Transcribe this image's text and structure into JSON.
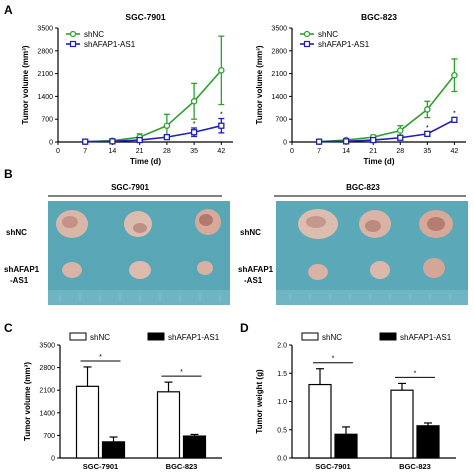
{
  "panels": {
    "a": "A",
    "b": "B",
    "c": "C",
    "d": "D"
  },
  "colors": {
    "shNC": "#2ca02c",
    "shAFAP1": "#1f1fb4",
    "photo_bg": "#5aa8b8"
  },
  "chart_data": [
    {
      "id": "line-sgc",
      "type": "line",
      "title": "SGC-7901",
      "xlabel": "Time (d)",
      "ylabel": "Tumor volume (mm³)",
      "x": [
        0,
        7,
        14,
        21,
        28,
        35,
        42
      ],
      "xticks": [
        "0",
        "7",
        "14",
        "21",
        "28",
        "35",
        "42"
      ],
      "xlim": [
        0,
        45
      ],
      "ylim": [
        0,
        3500
      ],
      "yticks": [
        "0",
        "700",
        "1400",
        "2100",
        "2800",
        "3500"
      ],
      "legend_position": "top-left",
      "series": [
        {
          "name": "shNC",
          "x": [
            7,
            14,
            21,
            28,
            35,
            42
          ],
          "values": [
            10,
            40,
            150,
            500,
            1250,
            2200
          ],
          "errors": [
            5,
            15,
            100,
            350,
            550,
            1050
          ]
        },
        {
          "name": "shAFAP1-AS1",
          "x": [
            7,
            14,
            21,
            28,
            35,
            42
          ],
          "values": [
            10,
            20,
            60,
            150,
            300,
            500
          ],
          "errors": [
            5,
            10,
            30,
            60,
            130,
            220
          ]
        }
      ],
      "annotations": [
        {
          "x": 35,
          "text": "*"
        },
        {
          "x": 42,
          "text": "*"
        }
      ]
    },
    {
      "id": "line-bgc",
      "type": "line",
      "title": "BGC-823",
      "xlabel": "Time (d)",
      "ylabel": "Tumor volume (mm³)",
      "x": [
        0,
        7,
        14,
        21,
        28,
        35,
        42
      ],
      "xticks": [
        "0",
        "7",
        "14",
        "21",
        "28",
        "35",
        "42"
      ],
      "xlim": [
        0,
        45
      ],
      "ylim": [
        0,
        3500
      ],
      "yticks": [
        "0",
        "700",
        "1400",
        "2100",
        "2800",
        "3500"
      ],
      "legend_position": "top-left",
      "series": [
        {
          "name": "shNC",
          "x": [
            7,
            14,
            21,
            28,
            35,
            42
          ],
          "values": [
            10,
            60,
            150,
            350,
            1000,
            2050
          ],
          "errors": [
            5,
            20,
            60,
            150,
            250,
            500
          ]
        },
        {
          "name": "shAFAP1-AS1",
          "x": [
            7,
            14,
            21,
            28,
            35,
            42
          ],
          "values": [
            10,
            20,
            60,
            130,
            250,
            680
          ],
          "errors": [
            5,
            10,
            25,
            40,
            60,
            70
          ]
        }
      ],
      "annotations": [
        {
          "x": 35,
          "text": "*"
        },
        {
          "x": 42,
          "text": "*"
        }
      ]
    },
    {
      "id": "bar-volume",
      "type": "bar",
      "title": "",
      "ylabel": "Tumor volume (mm³)",
      "categories": [
        "SGC-7901",
        "BGC-823"
      ],
      "ylim": [
        0,
        3500
      ],
      "yticks": [
        "0",
        "700",
        "1400",
        "2100",
        "2800",
        "3500"
      ],
      "legend_position": "top",
      "series": [
        {
          "name": "shNC",
          "values": [
            2220,
            2050
          ],
          "errors": [
            600,
            300
          ]
        },
        {
          "name": "shAFAP1-AS1",
          "values": [
            500,
            680
          ],
          "errors": [
            150,
            50
          ]
        }
      ],
      "annotations": [
        "*",
        "*"
      ]
    },
    {
      "id": "bar-weight",
      "type": "bar",
      "title": "",
      "ylabel": "Tumor weight (g)",
      "categories": [
        "SGC-7901",
        "BGC-823"
      ],
      "ylim": [
        0,
        2.0
      ],
      "yticks": [
        "0.0",
        "0.5",
        "1.0",
        "1.5",
        "2.0"
      ],
      "legend_position": "top",
      "series": [
        {
          "name": "shNC",
          "values": [
            1.3,
            1.2
          ],
          "errors": [
            0.28,
            0.12
          ]
        },
        {
          "name": "shAFAP1-AS1",
          "values": [
            0.42,
            0.57
          ],
          "errors": [
            0.13,
            0.05
          ]
        }
      ],
      "annotations": [
        "*",
        "*"
      ]
    }
  ],
  "photos": {
    "left": {
      "title": "SGC-7901",
      "row_labels": [
        "shNC",
        "shAFAP1\n-AS1"
      ]
    },
    "right": {
      "title": "BGC-823",
      "row_labels": [
        "shNC",
        "shAFAP1\n-AS1"
      ]
    }
  }
}
